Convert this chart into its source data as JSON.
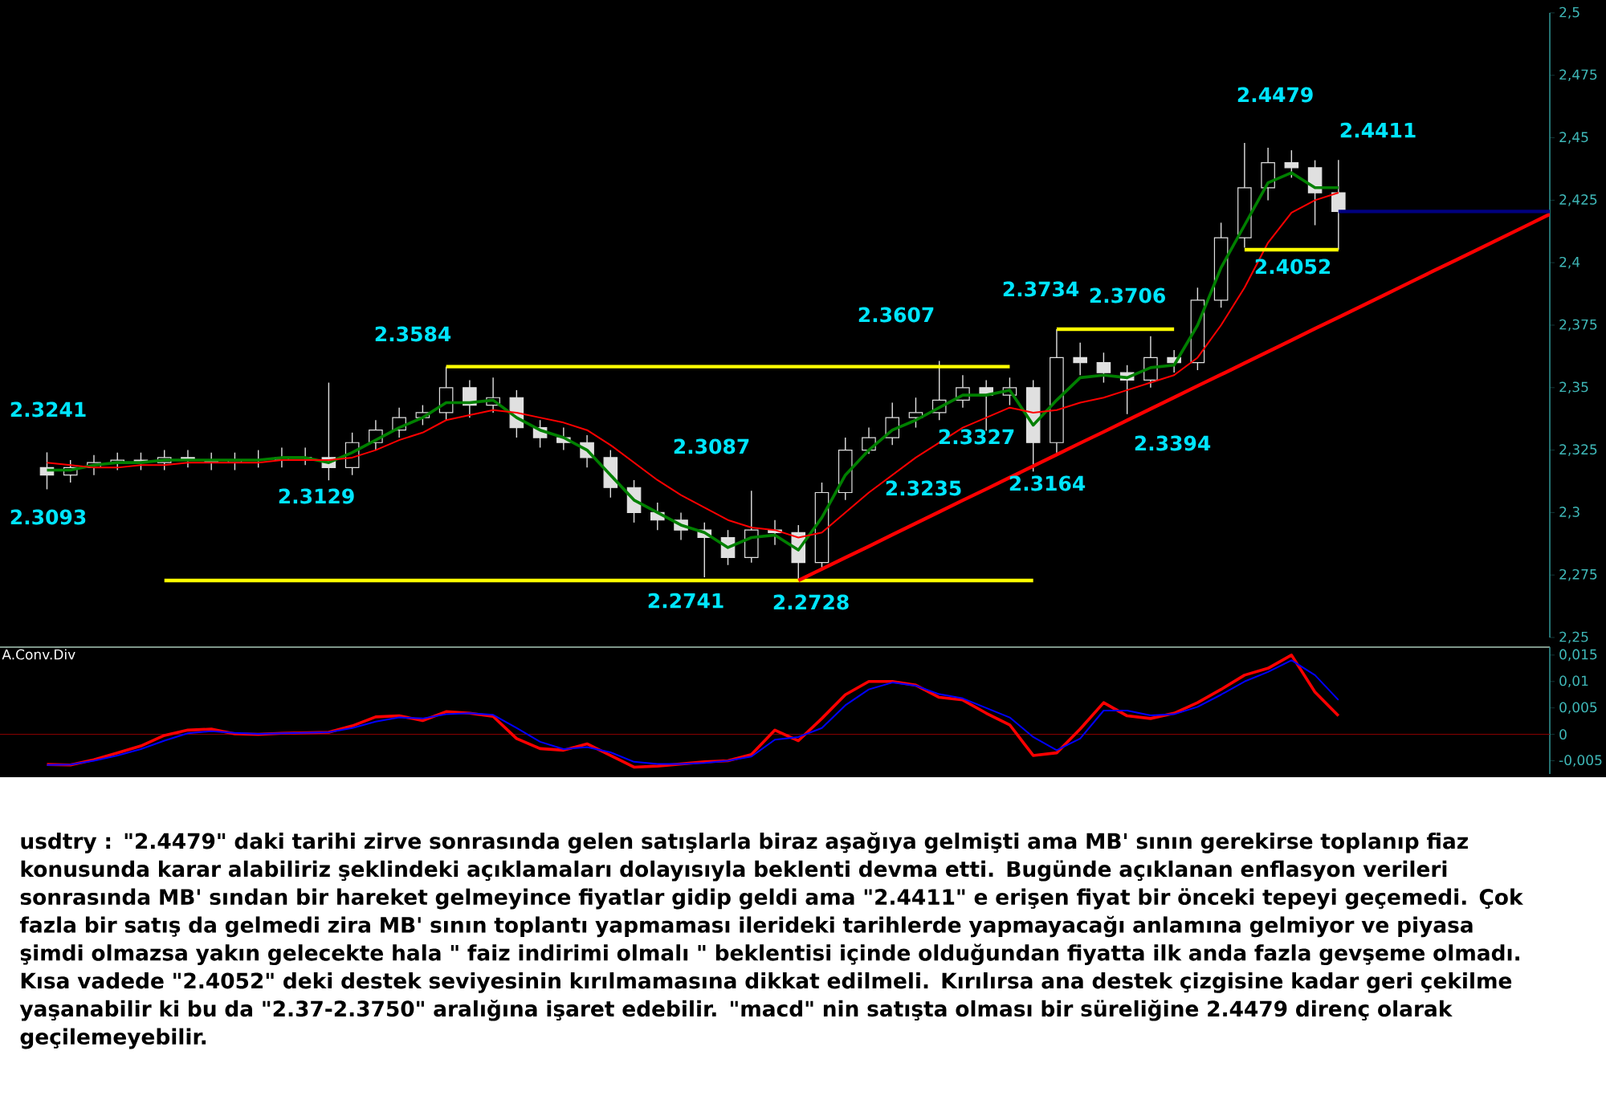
{
  "chart_data": [
    {
      "type": "candlestick",
      "categories": [
        null,
        null,
        null,
        null,
        null,
        null,
        null,
        null,
        null,
        null,
        null,
        null,
        null,
        null,
        null,
        null,
        null,
        null,
        null,
        null,
        null,
        null,
        null,
        null,
        null,
        null,
        null,
        null,
        null,
        null,
        null,
        null,
        null,
        null,
        null,
        null,
        null,
        null,
        null,
        null,
        null,
        null,
        null,
        null,
        null,
        null,
        null,
        null,
        null,
        null,
        null,
        null,
        null,
        null,
        null,
        null,
        null,
        null,
        null,
        null,
        null,
        null,
        null,
        null,
        null
      ],
      "color": "#e0e0e0",
      "ohlc": [
        [
          2.318,
          2.3241,
          2.3093,
          2.315
        ],
        [
          2.315,
          2.321,
          2.312,
          2.318
        ],
        [
          2.318,
          2.323,
          2.315,
          2.32
        ],
        [
          2.32,
          2.324,
          2.317,
          2.321
        ],
        [
          2.321,
          2.324,
          2.317,
          2.32
        ],
        [
          2.32,
          2.325,
          2.317,
          2.322
        ],
        [
          2.322,
          2.325,
          2.318,
          2.321
        ],
        [
          2.321,
          2.324,
          2.317,
          2.32
        ],
        [
          2.32,
          2.324,
          2.317,
          2.321
        ],
        [
          2.321,
          2.325,
          2.318,
          2.321
        ],
        [
          2.321,
          2.326,
          2.318,
          2.322
        ],
        [
          2.322,
          2.326,
          2.319,
          2.322
        ],
        [
          2.322,
          2.352,
          2.3129,
          2.318
        ],
        [
          2.318,
          2.332,
          2.315,
          2.328
        ],
        [
          2.328,
          2.337,
          2.325,
          2.333
        ],
        [
          2.333,
          2.342,
          2.33,
          2.338
        ],
        [
          2.338,
          2.343,
          2.335,
          2.34
        ],
        [
          2.34,
          2.3584,
          2.337,
          2.35
        ],
        [
          2.35,
          2.353,
          2.338,
          2.343
        ],
        [
          2.343,
          2.354,
          2.34,
          2.346
        ],
        [
          2.346,
          2.349,
          2.33,
          2.334
        ],
        [
          2.334,
          2.337,
          2.326,
          2.33
        ],
        [
          2.33,
          2.334,
          2.325,
          2.328
        ],
        [
          2.328,
          2.331,
          2.318,
          2.322
        ],
        [
          2.322,
          2.325,
          2.306,
          2.31
        ],
        [
          2.31,
          2.313,
          2.296,
          2.3
        ],
        [
          2.3,
          2.304,
          2.293,
          2.297
        ],
        [
          2.297,
          2.3,
          2.289,
          2.293
        ],
        [
          2.293,
          2.296,
          2.2741,
          2.29
        ],
        [
          2.29,
          2.293,
          2.279,
          2.282
        ],
        [
          2.282,
          2.3087,
          2.28,
          2.293
        ],
        [
          2.293,
          2.297,
          2.287,
          2.292
        ],
        [
          2.292,
          2.295,
          2.2728,
          2.28
        ],
        [
          2.28,
          2.312,
          2.278,
          2.308
        ],
        [
          2.308,
          2.33,
          2.305,
          2.325
        ],
        [
          2.325,
          2.334,
          2.3235,
          2.33
        ],
        [
          2.33,
          2.344,
          2.327,
          2.338
        ],
        [
          2.338,
          2.346,
          2.334,
          2.34
        ],
        [
          2.34,
          2.3607,
          2.337,
          2.345
        ],
        [
          2.345,
          2.355,
          2.342,
          2.35
        ],
        [
          2.35,
          2.353,
          2.3327,
          2.347
        ],
        [
          2.347,
          2.354,
          2.343,
          2.35
        ],
        [
          2.35,
          2.353,
          2.3164,
          2.328
        ],
        [
          2.328,
          2.3734,
          2.324,
          2.362
        ],
        [
          2.362,
          2.368,
          2.355,
          2.36
        ],
        [
          2.36,
          2.364,
          2.352,
          2.356
        ],
        [
          2.356,
          2.359,
          2.3394,
          2.353
        ],
        [
          2.353,
          2.3706,
          2.35,
          2.362
        ],
        [
          2.362,
          2.365,
          2.356,
          2.36
        ],
        [
          2.36,
          2.39,
          2.357,
          2.385
        ],
        [
          2.385,
          2.416,
          2.382,
          2.41
        ],
        [
          2.41,
          2.4479,
          2.406,
          2.43
        ],
        [
          2.43,
          2.446,
          2.425,
          2.44
        ],
        [
          2.44,
          2.445,
          2.434,
          2.438
        ],
        [
          2.438,
          2.441,
          2.415,
          2.428
        ],
        [
          2.428,
          2.4411,
          2.4052,
          2.4205
        ],
        null,
        null,
        null,
        null,
        null,
        null,
        null,
        null,
        null
      ],
      "series": [
        {
          "type": "line",
          "color": "#008000",
          "values": [
            2.317,
            2.317,
            2.319,
            2.32,
            2.32,
            2.321,
            2.321,
            2.321,
            2.321,
            2.321,
            2.322,
            2.322,
            2.32,
            2.324,
            2.329,
            2.334,
            2.338,
            2.344,
            2.344,
            2.345,
            2.338,
            2.333,
            2.33,
            2.325,
            2.315,
            2.305,
            2.3,
            2.295,
            2.292,
            2.286,
            2.29,
            2.291,
            2.285,
            2.298,
            2.315,
            2.325,
            2.333,
            2.337,
            2.342,
            2.347,
            2.347,
            2.349,
            2.335,
            2.345,
            2.354,
            2.355,
            2.354,
            2.358,
            2.359,
            2.375,
            2.398,
            2.415,
            2.432,
            2.436,
            2.43,
            2.43,
            null,
            null,
            null,
            null,
            null,
            null,
            null,
            null,
            null
          ]
        },
        {
          "type": "line",
          "color": "#ff0000",
          "values": [
            2.32,
            2.319,
            2.318,
            2.318,
            2.319,
            2.319,
            2.32,
            2.32,
            2.32,
            2.32,
            2.321,
            2.321,
            2.321,
            2.322,
            2.325,
            2.329,
            2.332,
            2.337,
            2.339,
            2.341,
            2.34,
            2.338,
            2.336,
            2.333,
            2.327,
            2.32,
            2.313,
            2.307,
            2.302,
            2.297,
            2.294,
            2.293,
            2.29,
            2.292,
            2.3,
            2.308,
            2.315,
            2.322,
            2.328,
            2.334,
            2.338,
            2.342,
            2.34,
            2.341,
            2.344,
            2.346,
            2.349,
            2.352,
            2.355,
            2.362,
            2.375,
            2.39,
            2.408,
            2.42,
            2.425,
            2.428,
            null,
            null,
            null,
            null,
            null,
            null,
            null,
            null,
            null
          ]
        },
        {
          "type": "line",
          "color": "#ffff00",
          "values": [
            null,
            null,
            null,
            null,
            null,
            null,
            null,
            null,
            null,
            null,
            null,
            null,
            null,
            null,
            null,
            null,
            null,
            2.3584,
            2.3584,
            2.3584,
            2.3584,
            2.3584,
            2.3584,
            2.3584,
            2.3584,
            2.3584,
            2.3584,
            2.3584,
            2.3584,
            2.3584,
            2.3584,
            2.3584,
            2.3584,
            2.3584,
            2.3584,
            2.3584,
            2.3584,
            2.3584,
            2.3584,
            2.3584,
            2.3584,
            2.3584,
            null,
            null,
            null,
            null,
            null,
            null,
            null,
            null,
            null,
            null,
            null,
            null,
            null,
            null,
            null,
            null,
            null,
            null,
            null,
            null,
            null,
            null,
            null
          ]
        },
        {
          "type": "line",
          "color": "#ffff00",
          "values": [
            null,
            null,
            null,
            null,
            null,
            2.2728,
            2.2728,
            2.2728,
            2.2728,
            2.2728,
            2.2728,
            2.2728,
            2.2728,
            2.2728,
            2.2728,
            2.2728,
            2.2728,
            2.2728,
            2.2728,
            2.2728,
            2.2728,
            2.2728,
            2.2728,
            2.2728,
            2.2728,
            2.2728,
            2.2728,
            2.2728,
            2.2728,
            2.2728,
            2.2728,
            2.2728,
            2.2728,
            2.2728,
            2.2728,
            2.2728,
            2.2728,
            2.2728,
            2.2728,
            2.2728,
            2.2728,
            2.2728,
            2.2728,
            null,
            null,
            null,
            null,
            null,
            null,
            null,
            null,
            null,
            null,
            null,
            null,
            null,
            null,
            null,
            null,
            null,
            null,
            null,
            null,
            null,
            null
          ]
        },
        {
          "type": "line",
          "color": "#ffff00",
          "values": [
            null,
            null,
            null,
            null,
            null,
            null,
            null,
            null,
            null,
            null,
            null,
            null,
            null,
            null,
            null,
            null,
            null,
            null,
            null,
            null,
            null,
            null,
            null,
            null,
            null,
            null,
            null,
            null,
            null,
            null,
            null,
            null,
            null,
            null,
            null,
            null,
            null,
            null,
            null,
            null,
            null,
            null,
            null,
            2.3734,
            2.3734,
            2.3734,
            2.3734,
            2.3734,
            2.3734,
            null,
            null,
            null,
            null,
            null,
            null,
            null,
            null,
            null,
            null,
            null,
            null,
            null,
            null,
            null,
            null
          ]
        },
        {
          "type": "line",
          "color": "#ffff00",
          "values": [
            null,
            null,
            null,
            null,
            null,
            null,
            null,
            null,
            null,
            null,
            null,
            null,
            null,
            null,
            null,
            null,
            null,
            null,
            null,
            null,
            null,
            null,
            null,
            null,
            null,
            null,
            null,
            null,
            null,
            null,
            null,
            null,
            null,
            null,
            null,
            null,
            null,
            null,
            null,
            null,
            null,
            null,
            null,
            null,
            null,
            null,
            null,
            null,
            null,
            null,
            null,
            2.4052,
            2.4052,
            2.4052,
            2.4052,
            2.4052,
            null,
            null,
            null,
            null,
            null,
            null,
            null,
            null,
            null
          ]
        },
        {
          "type": "line",
          "color": "#ff0000",
          "values": [
            null,
            null,
            null,
            null,
            null,
            null,
            null,
            null,
            null,
            null,
            null,
            null,
            null,
            null,
            null,
            null,
            null,
            null,
            null,
            null,
            null,
            null,
            null,
            null,
            null,
            null,
            null,
            null,
            null,
            null,
            null,
            null,
            2.2728,
            2.2774,
            2.282,
            2.2865,
            2.2911,
            2.2957,
            2.3003,
            2.3049,
            2.3094,
            2.314,
            2.3186,
            2.3232,
            2.3278,
            2.3323,
            2.3369,
            2.3415,
            2.3461,
            2.3507,
            2.3552,
            2.3598,
            2.3644,
            2.369,
            2.3736,
            2.3781,
            2.3827,
            2.3873,
            2.3919,
            2.3965,
            2.401,
            2.4056,
            2.4102,
            2.4148,
            2.4194
          ]
        },
        {
          "type": "line",
          "color": "#000080",
          "values": [
            null,
            null,
            null,
            null,
            null,
            null,
            null,
            null,
            null,
            null,
            null,
            null,
            null,
            null,
            null,
            null,
            null,
            null,
            null,
            null,
            null,
            null,
            null,
            null,
            null,
            null,
            null,
            null,
            null,
            null,
            null,
            null,
            null,
            null,
            null,
            null,
            null,
            null,
            null,
            null,
            null,
            null,
            null,
            null,
            null,
            null,
            null,
            null,
            null,
            null,
            null,
            null,
            null,
            null,
            null,
            2.4205,
            2.4205,
            2.4205,
            2.4205,
            2.4205,
            2.4205,
            2.4205,
            2.4205,
            2.4205,
            2.4205
          ]
        }
      ],
      "ylim": [
        2.25,
        2.5
      ],
      "yticks": [
        {
          "value": 2.25,
          "label": "2,25"
        },
        {
          "value": 2.275,
          "label": "2,275"
        },
        {
          "value": 2.3,
          "label": "2,3"
        },
        {
          "value": 2.325,
          "label": "2,325"
        },
        {
          "value": 2.35,
          "label": "2,35"
        },
        {
          "value": 2.375,
          "label": "2,375"
        },
        {
          "value": 2.4,
          "label": "2,4"
        },
        {
          "value": 2.425,
          "label": "2,425"
        },
        {
          "value": 2.45,
          "label": "2,45"
        },
        {
          "value": 2.475,
          "label": "2,475"
        },
        {
          "value": 2.5,
          "label": "2,5"
        }
      ],
      "tick_labels": "y",
      "annotations": [
        "2.3241",
        "2.3093",
        "2.3129",
        "2.3584",
        "2.2741",
        "2.3087",
        "2.2728",
        "2.3235",
        "2.3607",
        "2.3327",
        "2.3164",
        "2.3734",
        "2.3394",
        "2.3706",
        "2.4479",
        "2.4052",
        "2.4411",
        "usdtry : \"2.4479\" daki tarihi zirve sonrasında gelen satışlarla biraz aşağıya gelmişti ama MB' sının gerekirse toplanıp fiaz konusunda karar alabiliriz şeklindeki açıklamaları dolayısıyla beklenti devma etti. Bugünde açıklanan enflasyon verileri sonrasında MB' sından bir hareket gelmeyince fiyatlar gidip geldi ama \"2.4411\" e erişen fiyat bir önceki tepeyi geçemedi. Çok fazla bir satış da gelmedi zira MB' sının toplantı yapmaması ilerideki tarihlerde yapmayacağı anlamına gelmiyor ve piyasa şimdi olmazsa yakın gelecekte hala \" faiz indirimi olmalı \" beklentisi içinde olduğundan fiyatta ilk anda fazla gevşeme olmadı. Kısa vadede \"2.4052\" deki destek seviyesinin kırılmamasına dikkat edilmeli. Kırılırsa ana destek çizgisine kadar geri çekilme yaşanabilir ki bu da \"2.37-2.3750\" aralığına işaret edebilir. \"macd\" nin satışta olması bir süreliğine 2.4479 direnç olarak geçilemeyebilir."
      ]
    },
    {
      "type": "line",
      "title": "A.Conv.Div",
      "categories": [
        null,
        null,
        null,
        null,
        null,
        null,
        null,
        null,
        null,
        null,
        null,
        null,
        null,
        null,
        null,
        null,
        null,
        null,
        null,
        null,
        null,
        null,
        null,
        null,
        null,
        null,
        null,
        null,
        null,
        null,
        null,
        null,
        null,
        null,
        null,
        null,
        null,
        null,
        null,
        null,
        null,
        null,
        null,
        null,
        null,
        null,
        null,
        null,
        null,
        null,
        null,
        null,
        null,
        null,
        null,
        null,
        null,
        null,
        null,
        null,
        null,
        null,
        null,
        null,
        null
      ],
      "series": [
        {
          "color": "#ff0000",
          "values": [
            -0.0057,
            -0.0058,
            -0.0048,
            -0.0035,
            -0.0022,
            -0.0002,
            0.0008,
            0.001,
            0.0001,
            0.0,
            0.0002,
            0.0003,
            0.0004,
            0.0016,
            0.0033,
            0.0035,
            0.0026,
            0.0043,
            0.004,
            0.0034,
            -0.0008,
            -0.0027,
            -0.003,
            -0.0018,
            -0.004,
            -0.0062,
            -0.006,
            -0.0056,
            -0.0052,
            -0.005,
            -0.0038,
            0.0008,
            -0.0012,
            0.003,
            0.0075,
            0.01,
            0.01,
            0.0093,
            0.007,
            0.0065,
            0.004,
            0.0018,
            -0.004,
            -0.0035,
            0.001,
            0.006,
            0.0035,
            0.003,
            0.004,
            0.006,
            0.0085,
            0.0112,
            0.0125,
            0.015,
            0.008,
            0.0035,
            null,
            null,
            null,
            null,
            null,
            null,
            null,
            null,
            null
          ]
        },
        {
          "color": "#0000ff",
          "values": [
            -0.0058,
            -0.0057,
            -0.005,
            -0.004,
            -0.0028,
            -0.0012,
            0.0002,
            0.0006,
            0.0003,
            0.0001,
            0.0002,
            0.0003,
            0.0004,
            0.0012,
            0.0024,
            0.0032,
            0.003,
            0.0038,
            0.004,
            0.0037,
            0.0012,
            -0.0014,
            -0.0028,
            -0.0024,
            -0.0034,
            -0.0052,
            -0.0056,
            -0.0056,
            -0.0054,
            -0.005,
            -0.0042,
            -0.001,
            -0.0005,
            0.0012,
            0.0055,
            0.0085,
            0.0098,
            0.0092,
            0.0076,
            0.0068,
            0.005,
            0.0032,
            -0.0005,
            -0.003,
            -0.0008,
            0.0045,
            0.0045,
            0.0036,
            0.0038,
            0.0052,
            0.0075,
            0.01,
            0.0118,
            0.014,
            0.0112,
            0.0065,
            null,
            null,
            null,
            null,
            null,
            null,
            null,
            null,
            null
          ]
        }
      ],
      "ylim": [
        -0.0075,
        0.0165
      ],
      "yticks": [
        {
          "value": -0.005,
          "label": "-0,005"
        },
        {
          "value": 0,
          "label": "0"
        },
        {
          "value": 0.005,
          "label": "0,005"
        },
        {
          "value": 0.01,
          "label": "0,01"
        },
        {
          "value": 0.015,
          "label": "0,015"
        }
      ],
      "tick_labels": "y",
      "ref_lines": [
        {
          "axis": "y",
          "value": 0,
          "color": "#800000"
        }
      ]
    }
  ]
}
